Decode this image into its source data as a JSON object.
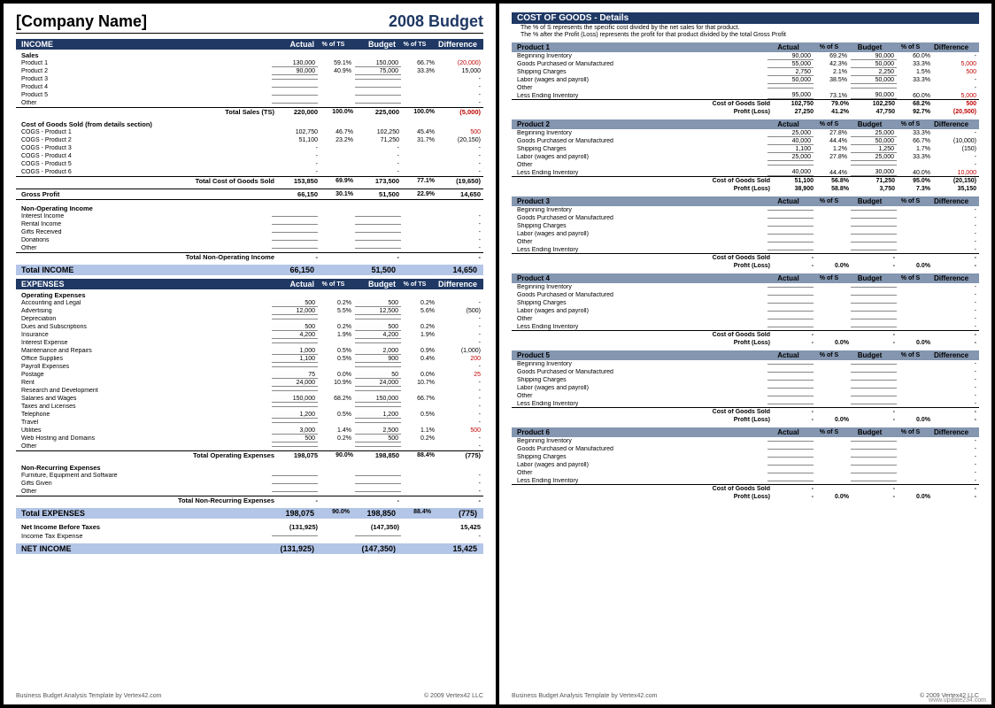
{
  "company": "[Company Name]",
  "budget_title": "2008 Budget",
  "footerL": "Business Budget Analysis Template by Vertex42.com",
  "footerR": "© 2009 Vertex42 LLC",
  "watermark": "www.update234.com",
  "colors": {
    "navy": "#1f3864",
    "totals_bg": "#b4c6e7",
    "subhead_bg": "#8496b0",
    "negative": "#c00000"
  },
  "h": {
    "income": "INCOME",
    "expenses": "EXPENSES",
    "actual": "Actual",
    "pct": "% of TS",
    "budget": "Budget",
    "diff": "Difference",
    "cog": "COST OF GOODS - Details",
    "pctS": "% of S"
  },
  "notes": [
    "The % of S represents the specific cost divided by the net sales for that product.",
    "The % after the Profit (Loss) represents the profit for that product divided by the total Gross Profit"
  ],
  "income": {
    "salesHdr": "Sales",
    "rows": [
      {
        "l": "Product 1",
        "a": "130,000",
        "ap": "59.1%",
        "b": "150,000",
        "bp": "66.7%",
        "d": "(20,000)",
        "dn": true,
        "in": true
      },
      {
        "l": "Product 2",
        "a": "90,000",
        "ap": "40.9%",
        "b": "75,000",
        "bp": "33.3%",
        "d": "15,000",
        "in": true
      },
      {
        "l": "Product 3",
        "a": "",
        "ap": "",
        "b": "",
        "bp": "",
        "d": "-",
        "in": true
      },
      {
        "l": "Product 4",
        "a": "",
        "ap": "",
        "b": "",
        "bp": "",
        "d": "-",
        "in": true
      },
      {
        "l": "Product 5",
        "a": "",
        "ap": "",
        "b": "",
        "bp": "",
        "d": "-",
        "in": true
      },
      {
        "l": "Other",
        "a": "",
        "ap": "",
        "b": "",
        "bp": "",
        "d": "-",
        "in": true
      }
    ],
    "totalSales": {
      "l": "Total Sales (TS)",
      "a": "220,000",
      "ap": "100.0%",
      "b": "225,000",
      "bp": "100.0%",
      "d": "(5,000)",
      "dn": true
    },
    "cogsHdr": "Cost of Goods Sold (from details section)",
    "cogs": [
      {
        "l": "COGS - Product 1",
        "a": "102,750",
        "ap": "46.7%",
        "b": "102,250",
        "bp": "45.4%",
        "d": "500",
        "dn": true
      },
      {
        "l": "COGS - Product 2",
        "a": "51,100",
        "ap": "23.2%",
        "b": "71,250",
        "bp": "31.7%",
        "d": "(20,150)"
      },
      {
        "l": "COGS - Product 3",
        "a": "-",
        "ap": "",
        "b": "-",
        "bp": "",
        "d": "-"
      },
      {
        "l": "COGS - Product 4",
        "a": "-",
        "ap": "",
        "b": "-",
        "bp": "",
        "d": "-"
      },
      {
        "l": "COGS - Product 5",
        "a": "-",
        "ap": "",
        "b": "-",
        "bp": "",
        "d": "-"
      },
      {
        "l": "COGS - Product 6",
        "a": "-",
        "ap": "",
        "b": "-",
        "bp": "",
        "d": "-"
      }
    ],
    "cogsTot": {
      "l": "Total Cost of Goods Sold",
      "a": "153,850",
      "ap": "69.9%",
      "b": "173,500",
      "bp": "77.1%",
      "d": "(19,650)"
    },
    "gross": {
      "l": "Gross Profit",
      "a": "66,150",
      "ap": "30.1%",
      "b": "51,500",
      "bp": "22.9%",
      "d": "14,650"
    },
    "nonOpHdr": "Non-Operating Income",
    "nonOp": [
      {
        "l": "Interest Income",
        "in": true
      },
      {
        "l": "Rental Income",
        "in": true
      },
      {
        "l": "Gifts Received",
        "in": true
      },
      {
        "l": "Donations",
        "in": true
      },
      {
        "l": "Other",
        "in": true
      }
    ],
    "nonOpTot": {
      "l": "Total Non-Operating Income",
      "a": "-",
      "b": "-",
      "d": "-"
    },
    "grand": {
      "l": "Total INCOME",
      "a": "66,150",
      "b": "51,500",
      "d": "14,650"
    }
  },
  "exp": {
    "opHdr": "Operating Expenses",
    "rows": [
      {
        "l": "Accounting and Legal",
        "a": "500",
        "ap": "0.2%",
        "b": "500",
        "bp": "0.2%",
        "d": "-",
        "in": true
      },
      {
        "l": "Advertising",
        "a": "12,000",
        "ap": "5.5%",
        "b": "12,500",
        "bp": "5.6%",
        "d": "(500)",
        "in": true
      },
      {
        "l": "Depreciation",
        "a": "",
        "ap": "",
        "b": "",
        "bp": "",
        "d": "-",
        "in": true
      },
      {
        "l": "Dues and Subscriptions",
        "a": "500",
        "ap": "0.2%",
        "b": "500",
        "bp": "0.2%",
        "d": "-",
        "in": true
      },
      {
        "l": "Insurance",
        "a": "4,200",
        "ap": "1.9%",
        "b": "4,200",
        "bp": "1.9%",
        "d": "-",
        "in": true
      },
      {
        "l": "Interest Expense",
        "a": "",
        "ap": "",
        "b": "",
        "bp": "",
        "d": "-",
        "in": true
      },
      {
        "l": "Maintenance and Repairs",
        "a": "1,000",
        "ap": "0.5%",
        "b": "2,000",
        "bp": "0.9%",
        "d": "(1,000)",
        "in": true
      },
      {
        "l": "Office Supplies",
        "a": "1,100",
        "ap": "0.5%",
        "b": "900",
        "bp": "0.4%",
        "d": "200",
        "dn": true,
        "in": true
      },
      {
        "l": "Payroll Expenses",
        "a": "",
        "ap": "",
        "b": "",
        "bp": "",
        "d": "-",
        "in": true
      },
      {
        "l": "Postage",
        "a": "75",
        "ap": "0.0%",
        "b": "50",
        "bp": "0.0%",
        "d": "25",
        "dn": true,
        "in": true
      },
      {
        "l": "Rent",
        "a": "24,000",
        "ap": "10.9%",
        "b": "24,000",
        "bp": "10.7%",
        "d": "-",
        "in": true
      },
      {
        "l": "Research and Development",
        "a": "",
        "ap": "",
        "b": "",
        "bp": "",
        "d": "-",
        "in": true
      },
      {
        "l": "Salaries and Wages",
        "a": "150,000",
        "ap": "68.2%",
        "b": "150,000",
        "bp": "66.7%",
        "d": "-",
        "in": true
      },
      {
        "l": "Taxes and Licenses",
        "a": "",
        "ap": "",
        "b": "",
        "bp": "",
        "d": "-",
        "in": true
      },
      {
        "l": "Telephone",
        "a": "1,200",
        "ap": "0.5%",
        "b": "1,200",
        "bp": "0.5%",
        "d": "-",
        "in": true
      },
      {
        "l": "Travel",
        "a": "",
        "ap": "",
        "b": "",
        "bp": "",
        "d": "-",
        "in": true
      },
      {
        "l": "Utilities",
        "a": "3,000",
        "ap": "1.4%",
        "b": "2,500",
        "bp": "1.1%",
        "d": "500",
        "dn": true,
        "in": true
      },
      {
        "l": "Web Hosting and Domains",
        "a": "500",
        "ap": "0.2%",
        "b": "500",
        "bp": "0.2%",
        "d": "-",
        "in": true
      },
      {
        "l": "Other",
        "a": "",
        "ap": "",
        "b": "",
        "bp": "",
        "d": "-",
        "in": true
      }
    ],
    "opTot": {
      "l": "Total Operating Expenses",
      "a": "198,075",
      "ap": "90.0%",
      "b": "198,850",
      "bp": "88.4%",
      "d": "(775)"
    },
    "nrHdr": "Non-Recurring Expenses",
    "nr": [
      {
        "l": "Furniture, Equipment and Software",
        "in": true
      },
      {
        "l": "Gifts Given",
        "in": true
      },
      {
        "l": "Other",
        "in": true
      }
    ],
    "nrTot": {
      "l": "Total Non-Recurring Expenses",
      "a": "-",
      "b": "-",
      "d": "-"
    },
    "grand": {
      "l": "Total EXPENSES",
      "a": "198,075",
      "ap": "90.0%",
      "b": "198,850",
      "bp": "88.4%",
      "d": "(775)"
    },
    "preTax": {
      "l": "Net Income Before Taxes",
      "a": "(131,925)",
      "b": "(147,350)",
      "d": "15,425"
    },
    "tax": {
      "l": "Income Tax Expense",
      "a": "",
      "b": "",
      "d": "-",
      "in": true
    },
    "net": {
      "l": "NET INCOME",
      "a": "(131,925)",
      "b": "(147,350)",
      "d": "15,425"
    }
  },
  "products": [
    {
      "name": "Product 1",
      "rows": [
        {
          "l": "Beginning Inventory",
          "a": "90,000",
          "ap": "69.2%",
          "b": "90,000",
          "bp": "60.0%",
          "d": "-",
          "in": true
        },
        {
          "l": "Goods Purchased or Manufactured",
          "a": "55,000",
          "ap": "42.3%",
          "b": "50,000",
          "bp": "33.3%",
          "d": "5,000",
          "dn": true,
          "in": true
        },
        {
          "l": "Shipping Charges",
          "a": "2,750",
          "ap": "2.1%",
          "b": "2,250",
          "bp": "1.5%",
          "d": "500",
          "dn": true,
          "in": true
        },
        {
          "l": "Labor (wages and payroll)",
          "a": "50,000",
          "ap": "38.5%",
          "b": "50,000",
          "bp": "33.3%",
          "d": "-",
          "in": true
        },
        {
          "l": "Other",
          "a": "",
          "ap": "",
          "b": "",
          "bp": "",
          "d": "-",
          "in": true
        },
        {
          "l": "Less Ending Inventory",
          "a": "95,000",
          "ap": "73.1%",
          "b": "90,000",
          "bp": "60.0%",
          "d": "5,000",
          "dn": true,
          "in": true
        }
      ],
      "cogs": {
        "l": "Cost of Goods Sold",
        "a": "102,750",
        "ap": "79.0%",
        "b": "102,250",
        "bp": "68.2%",
        "d": "500",
        "dn": true
      },
      "pl": {
        "l": "Profit (Loss)",
        "a": "27,250",
        "ap": "41.2%",
        "b": "47,750",
        "bp": "92.7%",
        "d": "(20,500)",
        "dn": true
      }
    },
    {
      "name": "Product 2",
      "rows": [
        {
          "l": "Beginning Inventory",
          "a": "25,000",
          "ap": "27.8%",
          "b": "25,000",
          "bp": "33.3%",
          "d": "-",
          "in": true
        },
        {
          "l": "Goods Purchased or Manufactured",
          "a": "40,000",
          "ap": "44.4%",
          "b": "50,000",
          "bp": "66.7%",
          "d": "(10,000)",
          "in": true
        },
        {
          "l": "Shipping Charges",
          "a": "1,100",
          "ap": "1.2%",
          "b": "1,250",
          "bp": "1.7%",
          "d": "(150)",
          "in": true
        },
        {
          "l": "Labor (wages and payroll)",
          "a": "25,000",
          "ap": "27.8%",
          "b": "25,000",
          "bp": "33.3%",
          "d": "-",
          "in": true
        },
        {
          "l": "Other",
          "a": "",
          "ap": "",
          "b": "",
          "bp": "",
          "d": "-",
          "in": true
        },
        {
          "l": "Less Ending Inventory",
          "a": "40,000",
          "ap": "44.4%",
          "b": "30,000",
          "bp": "40.0%",
          "d": "10,000",
          "dn": true,
          "in": true
        }
      ],
      "cogs": {
        "l": "Cost of Goods Sold",
        "a": "51,100",
        "ap": "56.8%",
        "b": "71,250",
        "bp": "95.0%",
        "d": "(20,150)"
      },
      "pl": {
        "l": "Profit (Loss)",
        "a": "38,900",
        "ap": "58.8%",
        "b": "3,750",
        "bp": "7.3%",
        "d": "35,150"
      }
    },
    {
      "name": "Product 3",
      "empty": true
    },
    {
      "name": "Product 4",
      "empty": true
    },
    {
      "name": "Product 5",
      "empty": true
    },
    {
      "name": "Product 6",
      "empty": true
    }
  ],
  "emptyRows": [
    {
      "l": "Beginning Inventory"
    },
    {
      "l": "Goods Purchased or Manufactured"
    },
    {
      "l": "Shipping Charges"
    },
    {
      "l": "Labor (wages and payroll)"
    },
    {
      "l": "Other"
    },
    {
      "l": "Less Ending Inventory"
    }
  ],
  "emptyCOGS": {
    "l": "Cost of Goods Sold",
    "a": "-",
    "b": "-",
    "d": "-"
  },
  "emptyPL": {
    "l": "Profit (Loss)",
    "a": "-",
    "ap": "0.0%",
    "b": "-",
    "bp": "0.0%",
    "d": "-"
  }
}
